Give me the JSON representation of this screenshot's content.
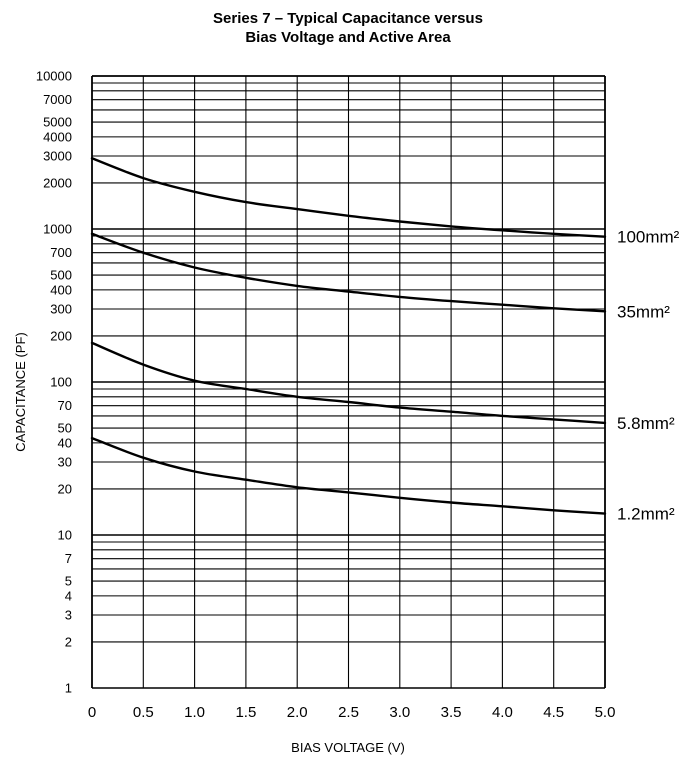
{
  "chart_data": {
    "type": "line",
    "title": "Series 7 – Typical Capacitance versus",
    "subtitle": "Bias Voltage and Active Area",
    "xlabel": "BIAS VOLTAGE (V)",
    "ylabel": "CAPACITANCE (PF)",
    "x_scale": "linear",
    "y_scale": "log",
    "xlim": [
      0,
      5.0
    ],
    "ylim": [
      1,
      10000
    ],
    "grid": true,
    "x_ticks": [
      "0",
      "0.5",
      "1.0",
      "1.5",
      "2.0",
      "2.5",
      "3.0",
      "3.5",
      "4.0",
      "4.5",
      "5.0"
    ],
    "y_ticks": [
      {
        "value": 1,
        "label": "1"
      },
      {
        "value": 2,
        "label": "2"
      },
      {
        "value": 3,
        "label": "3"
      },
      {
        "value": 4,
        "label": "4"
      },
      {
        "value": 5,
        "label": "5"
      },
      {
        "value": 7,
        "label": "7"
      },
      {
        "value": 10,
        "label": "10"
      },
      {
        "value": 20,
        "label": "20"
      },
      {
        "value": 30,
        "label": "30"
      },
      {
        "value": 40,
        "label": "40"
      },
      {
        "value": 50,
        "label": "50"
      },
      {
        "value": 70,
        "label": "70"
      },
      {
        "value": 100,
        "label": "100"
      },
      {
        "value": 200,
        "label": "200"
      },
      {
        "value": 300,
        "label": "300"
      },
      {
        "value": 400,
        "label": "400"
      },
      {
        "value": 500,
        "label": "500"
      },
      {
        "value": 700,
        "label": "700"
      },
      {
        "value": 1000,
        "label": "1000"
      },
      {
        "value": 2000,
        "label": "2000"
      },
      {
        "value": 3000,
        "label": "3000"
      },
      {
        "value": 4000,
        "label": "4000"
      },
      {
        "value": 5000,
        "label": "5000"
      },
      {
        "value": 7000,
        "label": "7000"
      },
      {
        "value": 10000,
        "label": "10000"
      }
    ],
    "series": [
      {
        "name": "100mm²",
        "x": [
          0,
          0.5,
          1.0,
          1.5,
          2.0,
          2.5,
          3.0,
          3.5,
          4.0,
          4.5,
          5.0
        ],
        "values": [
          2900,
          2150,
          1750,
          1500,
          1350,
          1220,
          1120,
          1040,
          980,
          930,
          890
        ]
      },
      {
        "name": "35mm²",
        "x": [
          0,
          0.5,
          1.0,
          1.5,
          2.0,
          2.5,
          3.0,
          3.5,
          4.0,
          4.5,
          5.0
        ],
        "values": [
          930,
          700,
          560,
          480,
          425,
          390,
          360,
          338,
          320,
          303,
          290
        ]
      },
      {
        "name": "5.8mm²",
        "x": [
          0,
          0.5,
          1.0,
          1.5,
          2.0,
          2.5,
          3.0,
          3.5,
          4.0,
          4.5,
          5.0
        ],
        "values": [
          180,
          130,
          102,
          90,
          80,
          74,
          68,
          64,
          60,
          57,
          54
        ]
      },
      {
        "name": "1.2mm²",
        "x": [
          0,
          0.5,
          1.0,
          1.5,
          2.0,
          2.5,
          3.0,
          3.5,
          4.0,
          4.5,
          5.0
        ],
        "values": [
          43,
          32,
          26,
          23,
          20.5,
          19,
          17.5,
          16.3,
          15.4,
          14.5,
          13.8
        ]
      }
    ]
  }
}
